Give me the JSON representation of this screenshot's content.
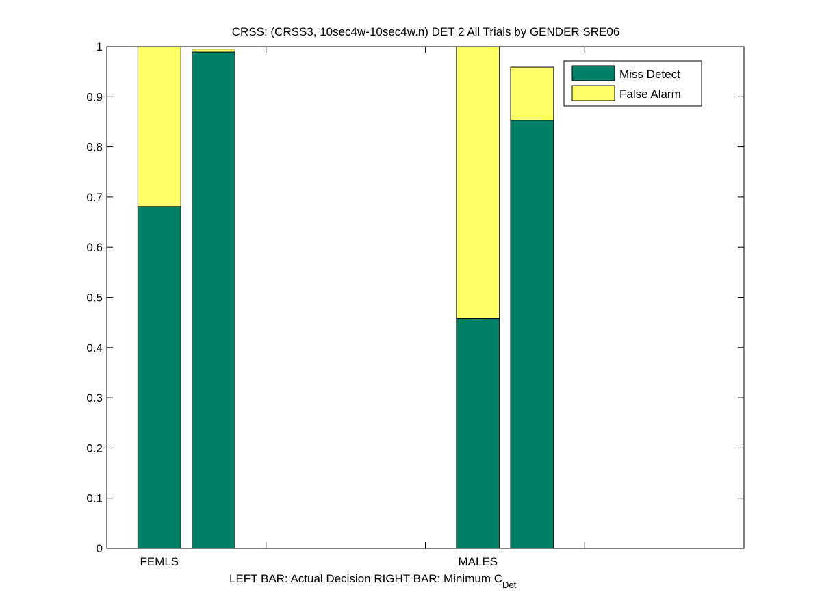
{
  "chart_data": {
    "type": "bar",
    "stacked": true,
    "title": "CRSS: (CRSS3, 10sec4w-10sec4w.n) DET 2 All Trials by GENDER SRE06",
    "xlabel_main": "LEFT BAR: Actual Decision     RIGHT BAR: Minimum C",
    "xlabel_sub": "Det",
    "categories": [
      "FEMLS",
      "MALES"
    ],
    "bars": [
      {
        "group": "FEMLS",
        "position": "left",
        "miss": 0.681,
        "fa": 0.319
      },
      {
        "group": "FEMLS",
        "position": "right",
        "miss": 0.989,
        "fa": 0.006
      },
      {
        "group": "MALES",
        "position": "left",
        "miss": 0.458,
        "fa": 0.542
      },
      {
        "group": "MALES",
        "position": "right",
        "miss": 0.853,
        "fa": 0.106
      }
    ],
    "series": [
      {
        "name": "Miss Detect",
        "color": "#008066"
      },
      {
        "name": "False Alarm",
        "color": "#ffff66"
      }
    ],
    "ylim": [
      0,
      1
    ],
    "yticks": [
      "0",
      "0.1",
      "0.2",
      "0.3",
      "0.4",
      "0.5",
      "0.6",
      "0.7",
      "0.8",
      "0.9",
      "1"
    ],
    "xlim": [
      0,
      4
    ],
    "grid": false,
    "legend_position": "top-right"
  }
}
